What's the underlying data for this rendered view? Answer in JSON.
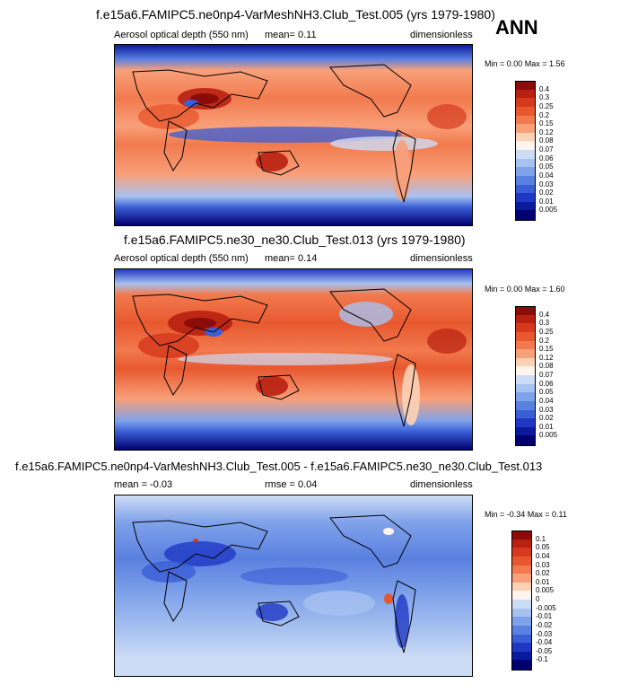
{
  "season_label": "ANN",
  "panels": [
    {
      "title": "f.e15a6.FAMIPC5.ne0np4-VarMeshNH3.Club_Test.005 (yrs 1979-1980)",
      "left_label": "Aerosol optical depth (550 nm)",
      "mid_label": "mean=   0.11",
      "right_label": "dimensionless",
      "minmax": "Min =  0.00  Max =   1.56"
    },
    {
      "title": "f.e15a6.FAMIPC5.ne30_ne30.Club_Test.013 (yrs 1979-1980)",
      "left_label": "Aerosol optical depth (550 nm)",
      "mid_label": "mean=   0.14",
      "right_label": "dimensionless",
      "minmax": "Min =  0.00  Max =   1.60"
    },
    {
      "title": "f.e15a6.FAMIPC5.ne0np4-VarMeshNH3.Club_Test.005 - f.e15a6.FAMIPC5.ne30_ne30.Club_Test.013",
      "left_label": "mean =  -0.03",
      "mid_label": "rmse =   0.04",
      "right_label": "dimensionless",
      "minmax": "Min =  -0.34  Max =   0.11"
    }
  ],
  "chart_data": [
    {
      "type": "heatmap",
      "field": "Aerosol optical depth (550 nm)",
      "units": "dimensionless",
      "mean": 0.11,
      "min": 0.0,
      "max": 1.56,
      "colorbar_levels": [
        "0.4",
        "0.3",
        "0.25",
        "0.2",
        "0.15",
        "0.12",
        "0.08",
        "0.07",
        "0.06",
        "0.05",
        "0.04",
        "0.03",
        "0.02",
        "0.01",
        "0.005"
      ],
      "colorbar_colors": [
        "#8b0a0a",
        "#b8200f",
        "#d63a1c",
        "#e8582e",
        "#f27a4e",
        "#f8a07a",
        "#fcd2b6",
        "#fff4ec",
        "#cddcf6",
        "#a8c2f0",
        "#7fa2ea",
        "#5a80e0",
        "#3a5ed6",
        "#1f38c4",
        "#0a1a9c",
        "#000070"
      ]
    },
    {
      "type": "heatmap",
      "field": "Aerosol optical depth (550 nm)",
      "units": "dimensionless",
      "mean": 0.14,
      "min": 0.0,
      "max": 1.6,
      "colorbar_levels": [
        "0.4",
        "0.3",
        "0.25",
        "0.2",
        "0.15",
        "0.12",
        "0.08",
        "0.07",
        "0.06",
        "0.05",
        "0.04",
        "0.03",
        "0.02",
        "0.01",
        "0.005"
      ],
      "colorbar_colors": [
        "#8b0a0a",
        "#b8200f",
        "#d63a1c",
        "#e8582e",
        "#f27a4e",
        "#f8a07a",
        "#fcd2b6",
        "#fff4ec",
        "#cddcf6",
        "#a8c2f0",
        "#7fa2ea",
        "#5a80e0",
        "#3a5ed6",
        "#1f38c4",
        "#0a1a9c",
        "#000070"
      ]
    },
    {
      "type": "heatmap",
      "field": "difference",
      "units": "dimensionless",
      "mean": -0.03,
      "rmse": 0.04,
      "min": -0.34,
      "max": 0.11,
      "colorbar_levels": [
        "0.1",
        "0.05",
        "0.04",
        "0.03",
        "0.02",
        "0.01",
        "0.005",
        "0",
        "-0.005",
        "-0.01",
        "-0.02",
        "-0.03",
        "-0.04",
        "-0.05",
        "-0.1"
      ],
      "colorbar_colors": [
        "#8b0a0a",
        "#b8200f",
        "#d63a1c",
        "#e8582e",
        "#f27a4e",
        "#f8a07a",
        "#fcd2b6",
        "#fff4ec",
        "#cddcf6",
        "#a8c2f0",
        "#7fa2ea",
        "#5a80e0",
        "#3a5ed6",
        "#1f38c4",
        "#0a1a9c",
        "#000070"
      ]
    }
  ]
}
